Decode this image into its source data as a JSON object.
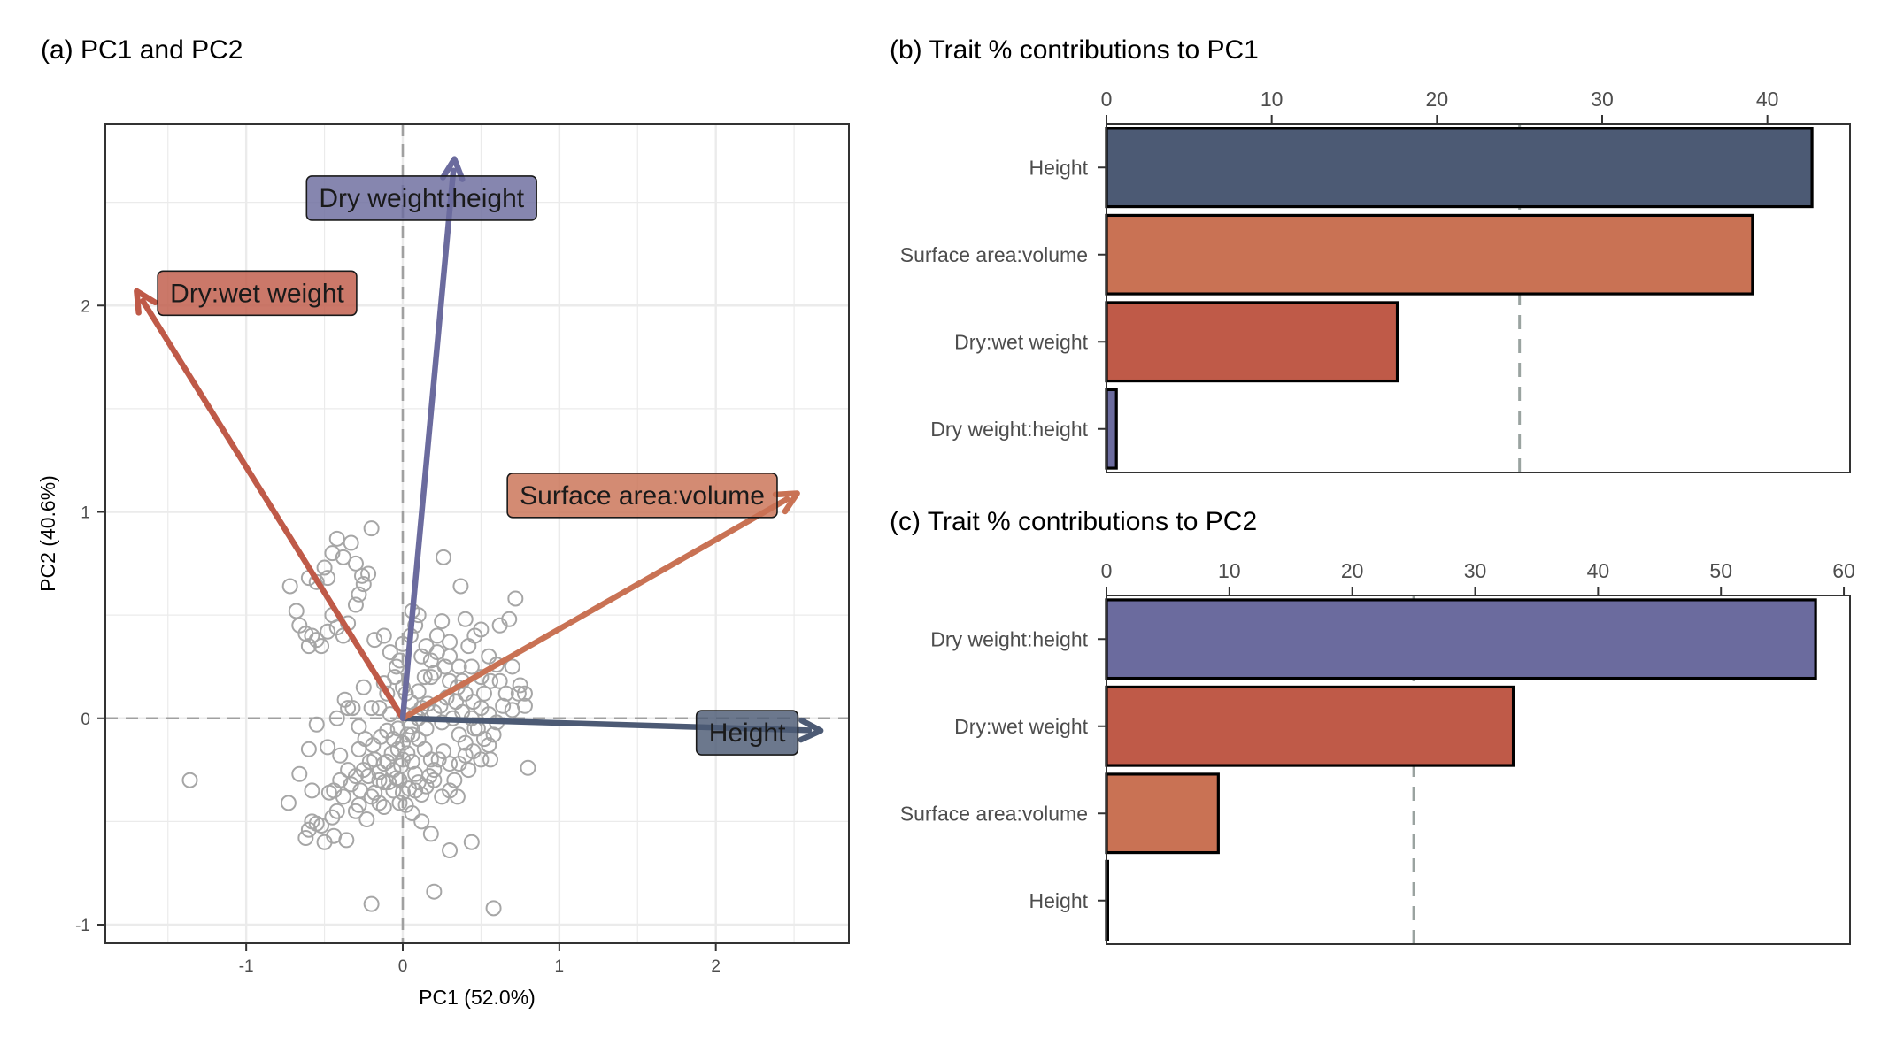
{
  "colors": {
    "Height": "#4c5a74",
    "Surface area:volume": "#c97254",
    "Dry:wet weight": "#bf5a48",
    "Dry weight:height": "#6b6b9e",
    "points": "#a6a6a6",
    "grid": "#ebebeb",
    "refline": "#a0a0a0",
    "threshold": "#9aa3a0"
  },
  "chart_data": [
    {
      "type": "scatter",
      "title": "(a) PC1 and PC2",
      "xlabel": "PC1 (52.0%)",
      "ylabel": "PC2 (40.6%)",
      "xlim": [
        -1.9,
        2.85
      ],
      "ylim": [
        -1.09,
        2.88
      ],
      "xticks": [
        -1,
        0,
        1,
        2
      ],
      "yticks": [
        -1,
        0,
        1,
        2
      ],
      "tick_labels_x": [
        "-1",
        "0",
        "1",
        "2"
      ],
      "tick_labels_y": [
        "-1",
        "0",
        "1",
        "2"
      ],
      "grid": true,
      "reference_lines": {
        "x": 0,
        "y": 0,
        "style": "dashed"
      },
      "vectors": [
        {
          "name": "Height",
          "x": 2.67,
          "y": -0.06
        },
        {
          "name": "Surface area:volume",
          "x": 2.52,
          "y": 1.09
        },
        {
          "name": "Dry:wet weight",
          "x": -1.7,
          "y": 2.07
        },
        {
          "name": "Dry weight:height",
          "x": 0.33,
          "y": 2.71
        }
      ],
      "vector_labels": [
        {
          "text": "Height",
          "x": 2.2,
          "y": -0.07
        },
        {
          "text": "Surface area:volume",
          "x": 1.53,
          "y": 1.08
        },
        {
          "text": "Dry:wet weight",
          "x": -0.93,
          "y": 2.06
        },
        {
          "text": "Dry weight:height",
          "x": 0.12,
          "y": 2.52
        }
      ],
      "points": [
        [
          -1.36,
          -0.3
        ],
        [
          -0.73,
          -0.41
        ],
        [
          -0.62,
          -0.58
        ],
        [
          -0.6,
          -0.54
        ],
        [
          -0.58,
          -0.5
        ],
        [
          -0.55,
          -0.51
        ],
        [
          -0.52,
          -0.52
        ],
        [
          -0.5,
          -0.6
        ],
        [
          -0.45,
          -0.48
        ],
        [
          -0.44,
          -0.57
        ],
        [
          -0.42,
          -0.45
        ],
        [
          -0.36,
          -0.59
        ],
        [
          -0.3,
          -0.45
        ],
        [
          -0.28,
          -0.42
        ],
        [
          -0.23,
          -0.49
        ],
        [
          -0.2,
          -0.38
        ],
        [
          -0.18,
          -0.36
        ],
        [
          -0.15,
          -0.41
        ],
        [
          -0.12,
          -0.43
        ],
        [
          -0.09,
          -0.31
        ],
        [
          -0.06,
          -0.35
        ],
        [
          -0.04,
          -0.29
        ],
        [
          -0.02,
          -0.41
        ],
        [
          -0.01,
          -0.23
        ],
        [
          -0.58,
          -0.35
        ],
        [
          -0.47,
          -0.36
        ],
        [
          -0.38,
          -0.38
        ],
        [
          -0.27,
          -0.35
        ],
        [
          -0.33,
          -0.32
        ],
        [
          -0.22,
          -0.28
        ],
        [
          -0.15,
          -0.26
        ],
        [
          -0.1,
          -0.21
        ],
        [
          -0.07,
          -0.17
        ],
        [
          -0.03,
          -0.15
        ],
        [
          0.0,
          -0.12
        ],
        [
          0.03,
          -0.17
        ],
        [
          0.06,
          -0.21
        ],
        [
          0.08,
          -0.27
        ],
        [
          0.1,
          -0.31
        ],
        [
          0.12,
          -0.37
        ],
        [
          0.15,
          -0.33
        ],
        [
          0.17,
          -0.28
        ],
        [
          0.2,
          -0.25
        ],
        [
          0.23,
          -0.2
        ],
        [
          0.26,
          -0.16
        ],
        [
          0.3,
          -0.22
        ],
        [
          0.33,
          -0.3
        ],
        [
          0.36,
          -0.22
        ],
        [
          0.4,
          -0.18
        ],
        [
          0.45,
          -0.16
        ],
        [
          0.5,
          -0.2
        ],
        [
          0.55,
          -0.13
        ],
        [
          0.58,
          -0.08
        ],
        [
          0.6,
          -0.02
        ],
        [
          0.55,
          0.02
        ],
        [
          0.5,
          0.05
        ],
        [
          0.45,
          0.08
        ],
        [
          0.4,
          0.12
        ],
        [
          0.35,
          0.15
        ],
        [
          0.3,
          0.18
        ],
        [
          0.28,
          0.1
        ],
        [
          0.24,
          0.06
        ],
        [
          0.2,
          0.03
        ],
        [
          0.16,
          0.07
        ],
        [
          0.12,
          0.05
        ],
        [
          0.08,
          0.02
        ],
        [
          0.05,
          -0.04
        ],
        [
          0.03,
          -0.08
        ],
        [
          -0.03,
          -0.05
        ],
        [
          -0.06,
          -0.1
        ],
        [
          -0.1,
          -0.06
        ],
        [
          -0.14,
          -0.09
        ],
        [
          -0.19,
          -0.13
        ],
        [
          -0.24,
          -0.1
        ],
        [
          -0.28,
          -0.04
        ],
        [
          -0.32,
          0.05
        ],
        [
          -0.37,
          0.09
        ],
        [
          -0.42,
          0.0
        ],
        [
          -0.48,
          -0.14
        ],
        [
          -0.55,
          -0.03
        ],
        [
          -0.6,
          -0.15
        ],
        [
          -0.66,
          -0.27
        ],
        [
          -0.15,
          0.05
        ],
        [
          -0.1,
          0.12
        ],
        [
          -0.05,
          0.2
        ],
        [
          -0.02,
          0.28
        ],
        [
          0.0,
          0.36
        ],
        [
          0.05,
          0.4
        ],
        [
          0.08,
          0.45
        ],
        [
          0.1,
          0.5
        ],
        [
          0.15,
          0.35
        ],
        [
          0.18,
          0.28
        ],
        [
          0.22,
          0.4
        ],
        [
          0.25,
          0.47
        ],
        [
          0.3,
          0.3
        ],
        [
          0.36,
          0.25
        ],
        [
          0.42,
          0.35
        ],
        [
          0.46,
          0.4
        ],
        [
          0.5,
          0.43
        ],
        [
          0.55,
          0.3
        ],
        [
          0.6,
          0.26
        ],
        [
          0.62,
          0.18
        ],
        [
          0.7,
          0.25
        ],
        [
          0.75,
          0.16
        ],
        [
          0.78,
          0.12
        ],
        [
          0.72,
          0.58
        ],
        [
          0.68,
          0.48
        ],
        [
          0.62,
          0.45
        ],
        [
          0.37,
          0.64
        ],
        [
          0.26,
          0.78
        ],
        [
          -0.68,
          0.52
        ],
        [
          -0.66,
          0.45
        ],
        [
          -0.62,
          0.41
        ],
        [
          -0.6,
          0.35
        ],
        [
          -0.58,
          0.4
        ],
        [
          -0.55,
          0.38
        ],
        [
          -0.52,
          0.35
        ],
        [
          -0.48,
          0.42
        ],
        [
          -0.45,
          0.5
        ],
        [
          -0.42,
          0.44
        ],
        [
          -0.38,
          0.4
        ],
        [
          -0.35,
          0.46
        ],
        [
          -0.3,
          0.55
        ],
        [
          -0.28,
          0.6
        ],
        [
          -0.25,
          0.65
        ],
        [
          -0.22,
          0.7
        ],
        [
          -0.18,
          0.38
        ],
        [
          -0.12,
          0.4
        ],
        [
          -0.08,
          0.32
        ],
        [
          -0.04,
          0.25
        ],
        [
          -0.72,
          0.64
        ],
        [
          -0.6,
          0.68
        ],
        [
          -0.5,
          0.73
        ],
        [
          -0.48,
          0.68
        ],
        [
          -0.45,
          0.8
        ],
        [
          -0.42,
          0.87
        ],
        [
          -0.38,
          0.78
        ],
        [
          -0.33,
          0.85
        ],
        [
          -0.3,
          0.75
        ],
        [
          -0.26,
          0.69
        ],
        [
          -0.2,
          0.92
        ],
        [
          -0.55,
          0.66
        ],
        [
          -0.35,
          0.05
        ],
        [
          -0.25,
          0.15
        ],
        [
          -0.2,
          0.05
        ],
        [
          -0.12,
          0.17
        ],
        [
          -0.4,
          -0.18
        ],
        [
          -0.35,
          -0.25
        ],
        [
          -0.28,
          -0.15
        ],
        [
          -0.21,
          -0.21
        ],
        [
          -0.18,
          -0.2
        ],
        [
          -0.12,
          -0.22
        ],
        [
          0.05,
          0.08
        ],
        [
          0.1,
          0.13
        ],
        [
          0.14,
          0.2
        ],
        [
          0.2,
          0.22
        ],
        [
          0.27,
          0.25
        ],
        [
          0.34,
          0.08
        ],
        [
          0.38,
          0.03
        ],
        [
          0.44,
          0.0
        ],
        [
          0.48,
          -0.05
        ],
        [
          0.52,
          -0.1
        ],
        [
          0.56,
          -0.2
        ],
        [
          0.42,
          -0.25
        ],
        [
          0.35,
          -0.38
        ],
        [
          0.3,
          -0.35
        ],
        [
          0.25,
          -0.38
        ],
        [
          0.2,
          -0.3
        ],
        [
          0.18,
          -0.2
        ],
        [
          0.14,
          -0.15
        ],
        [
          0.1,
          -0.1
        ],
        [
          0.06,
          -0.08
        ],
        [
          0.0,
          -0.2
        ],
        [
          -0.02,
          -0.3
        ],
        [
          0.04,
          -0.34
        ],
        [
          0.06,
          -0.46
        ],
        [
          0.12,
          -0.5
        ],
        [
          0.18,
          -0.56
        ],
        [
          0.44,
          -0.6
        ],
        [
          0.3,
          -0.64
        ],
        [
          0.58,
          -0.92
        ],
        [
          0.2,
          -0.84
        ],
        [
          -0.2,
          -0.9
        ],
        [
          0.74,
          0.12
        ],
        [
          0.78,
          0.06
        ],
        [
          0.8,
          -0.24
        ],
        [
          0.66,
          0.12
        ],
        [
          0.64,
          0.06
        ],
        [
          0.7,
          0.04
        ],
        [
          0.4,
          0.48
        ],
        [
          0.3,
          0.37
        ],
        [
          0.22,
          0.32
        ],
        [
          0.18,
          0.2
        ],
        [
          0.12,
          0.3
        ],
        [
          0.06,
          0.52
        ],
        [
          0.0,
          0.15
        ],
        [
          0.02,
          0.12
        ],
        [
          -0.08,
          0.02
        ],
        [
          0.1,
          0.0
        ],
        [
          0.15,
          -0.05
        ],
        [
          0.25,
          -0.02
        ],
        [
          0.32,
          0.0
        ],
        [
          0.36,
          -0.08
        ],
        [
          0.4,
          -0.12
        ],
        [
          0.46,
          -0.05
        ],
        [
          0.52,
          0.12
        ],
        [
          0.56,
          0.18
        ],
        [
          0.5,
          0.2
        ],
        [
          0.44,
          0.25
        ],
        [
          0.38,
          0.18
        ],
        [
          -0.44,
          -0.35
        ],
        [
          -0.4,
          -0.3
        ],
        [
          -0.3,
          -0.28
        ],
        [
          -0.25,
          -0.25
        ],
        [
          -0.15,
          -0.3
        ],
        [
          -0.06,
          -0.25
        ],
        [
          0.0,
          -0.36
        ],
        [
          0.02,
          -0.42
        ],
        [
          -0.12,
          -0.31
        ],
        [
          0.08,
          -0.35
        ]
      ]
    },
    {
      "type": "bar",
      "orientation": "horizontal",
      "title": "(b) Trait % contributions to PC1",
      "categories": [
        "Height",
        "Surface area:volume",
        "Dry:wet weight",
        "Dry weight:height"
      ],
      "values": [
        42.7,
        39.1,
        17.6,
        0.6
      ],
      "xlim": [
        0,
        45
      ],
      "xticks": [
        0,
        10,
        20,
        30,
        40
      ],
      "tick_labels_x": [
        "0",
        "10",
        "20",
        "30",
        "40"
      ],
      "threshold": 25
    },
    {
      "type": "bar",
      "orientation": "horizontal",
      "title": "(c) Trait % contributions to PC2",
      "categories": [
        "Dry weight:height",
        "Dry:wet weight",
        "Surface area:volume",
        "Height"
      ],
      "values": [
        57.7,
        33.1,
        9.1,
        0.1
      ],
      "xlim": [
        0,
        60.5
      ],
      "xticks": [
        0,
        10,
        20,
        30,
        40,
        50,
        60
      ],
      "tick_labels_x": [
        "0",
        "10",
        "20",
        "30",
        "40",
        "50",
        "60"
      ],
      "threshold": 25
    }
  ]
}
